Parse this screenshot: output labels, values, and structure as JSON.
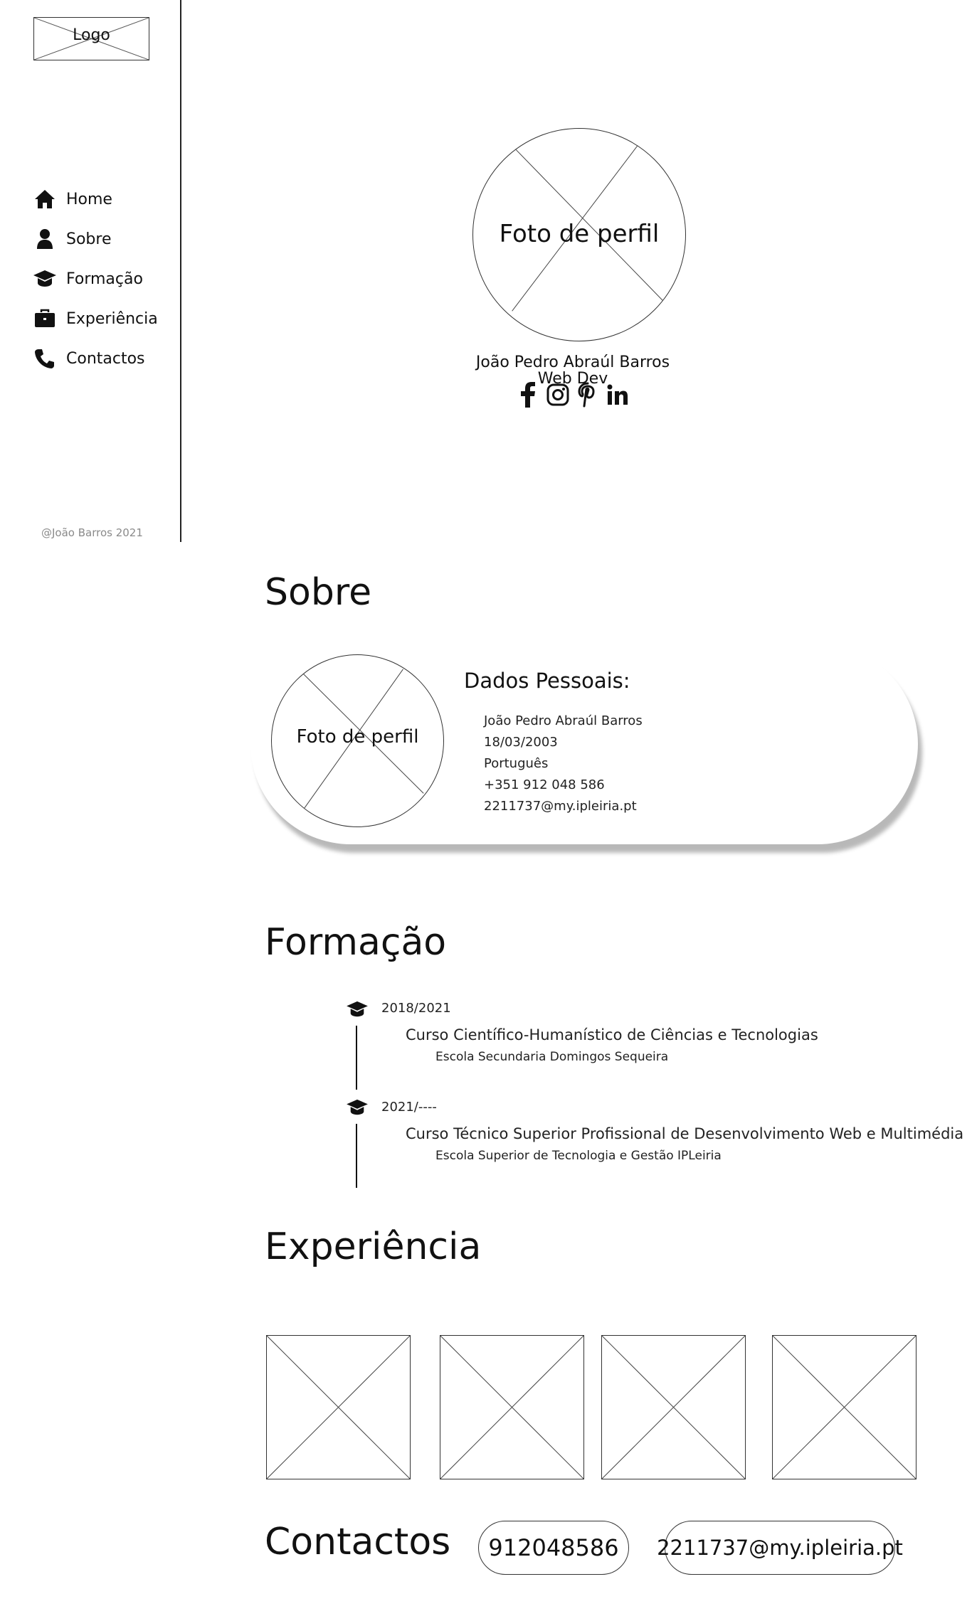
{
  "sidebar": {
    "logo": "Logo",
    "items": [
      {
        "label": "Home",
        "icon": "home-icon"
      },
      {
        "label": "Sobre",
        "icon": "user-icon"
      },
      {
        "label": "Formação",
        "icon": "graduation-cap-icon"
      },
      {
        "label": "Experiência",
        "icon": "briefcase-icon"
      },
      {
        "label": "Contactos",
        "icon": "phone-icon"
      }
    ],
    "copyright": "@João Barros 2021"
  },
  "hero": {
    "photo_label": "Foto de perfil",
    "name": "João Pedro Abraúl Barros",
    "role": "Web Dev",
    "social": [
      "facebook-icon",
      "instagram-icon",
      "pinterest-icon",
      "linkedin-icon"
    ]
  },
  "sobre": {
    "title": "Sobre",
    "photo_label": "Foto de perfil",
    "dados_title": "Dados Pessoais:",
    "lines": [
      "João Pedro Abraúl Barros",
      "18/03/2003",
      "Português",
      "+351 912 048 586",
      "2211737@my.ipleiria.pt"
    ]
  },
  "formacao": {
    "title": "Formação",
    "entries": [
      {
        "date": "2018/2021",
        "course": "Curso Científico-Humanístico de Ciências e Tecnologias",
        "school": "Escola Secundaria Domingos Sequeira"
      },
      {
        "date": "2021/----",
        "course": "Curso Técnico Superior Profissional de Desenvolvimento Web e Multimédia",
        "school": "Escola Superior de Tecnologia e Gestão IPLeiria"
      }
    ]
  },
  "experiencia": {
    "title": "Experiência",
    "image_count_label": ""
  },
  "contactos": {
    "title": "Contactos",
    "phone": "912048586",
    "email": "2211737@my.ipleiria.pt"
  }
}
